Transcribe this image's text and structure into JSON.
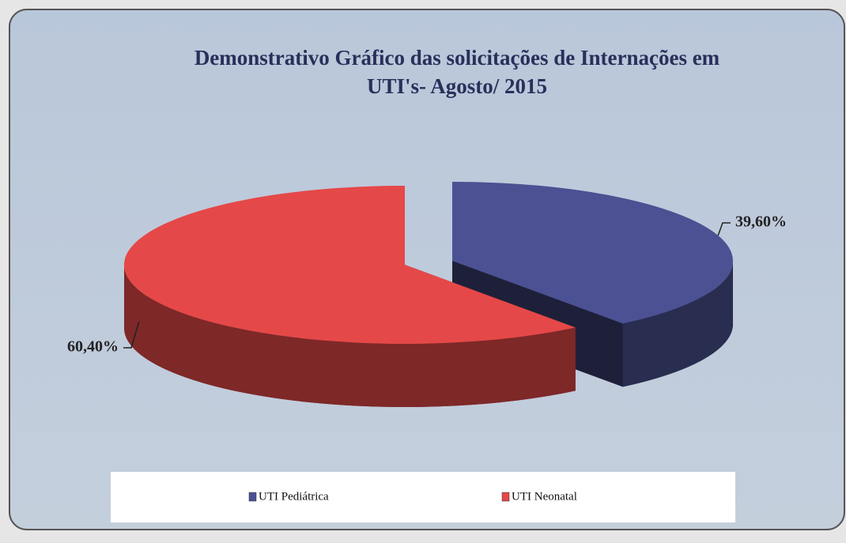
{
  "chart_data": {
    "type": "pie3d",
    "title": [
      "Demonstrativo Gráfico das solicitações de Internações em",
      "UTI's- Agosto/ 2015"
    ],
    "categories": [
      "UTI Pediátrica",
      "UTI Neonatal"
    ],
    "values": [
      39.6,
      60.4
    ],
    "value_labels": [
      "39,60%",
      "60,40%"
    ],
    "colors": [
      "#4b5192",
      "#e54848"
    ],
    "legend": "bottom"
  }
}
